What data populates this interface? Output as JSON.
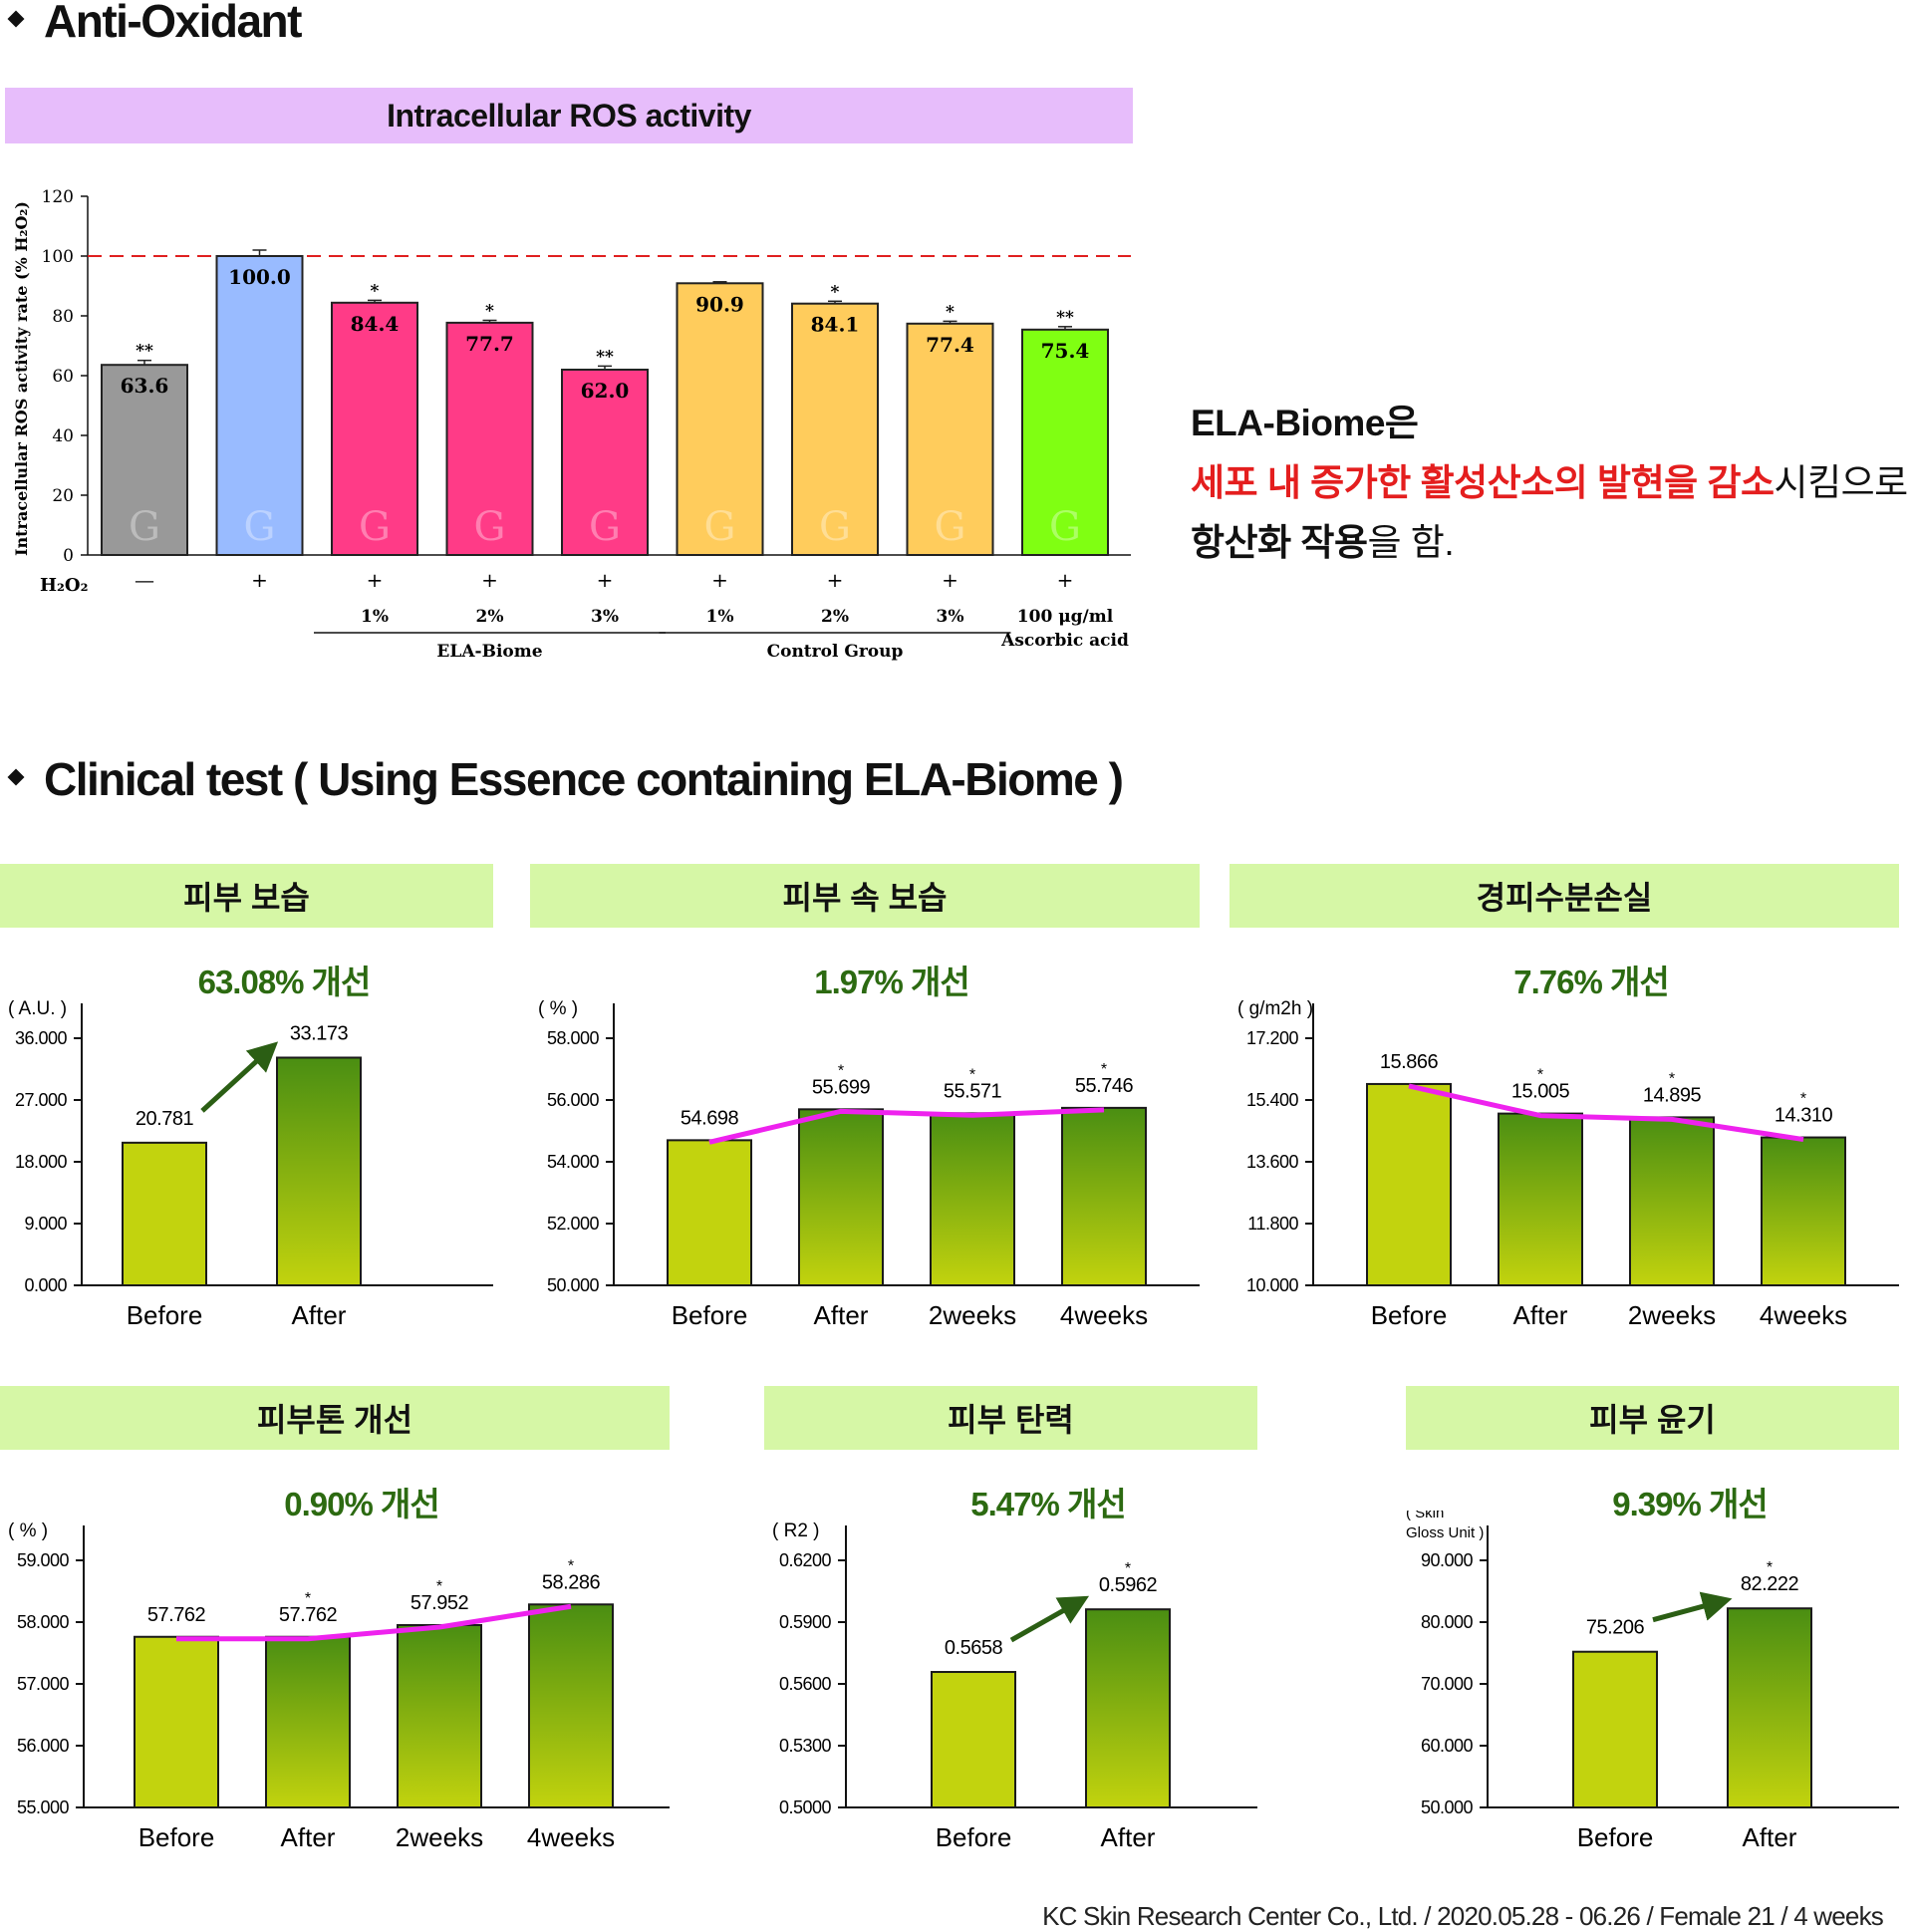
{
  "section1": {
    "title": "Anti-Oxidant"
  },
  "ros": {
    "banner": "Intracellular ROS activity",
    "note": {
      "line1": "ELA-Biome은",
      "line2_red": "세포 내 증가한  활성산소의 발현을 감소",
      "line2_rest": "시킴으로",
      "line3_bold": "항산화 작용",
      "line3_rest": "을 함."
    }
  },
  "section2": {
    "title": "Clinical test ( Using Essence containing ELA-Biome )"
  },
  "panels": {
    "p1": {
      "title": "피부 보습",
      "improve": "63.08% 개선"
    },
    "p2": {
      "title": "피부 속 보습",
      "improve": "1.97% 개선"
    },
    "p3": {
      "title": "경피수분손실",
      "improve": "7.76% 개선"
    },
    "p4": {
      "title": "피부톤 개선",
      "improve": "0.90% 개선"
    },
    "p5": {
      "title": "피부 탄력",
      "improve": "5.47% 개선"
    },
    "p6": {
      "title": "피부 윤기",
      "improve": "9.39% 개선"
    }
  },
  "footer": "KC Skin Research Center Co., Ltd. / 2020.05.28 - 06.26 / Female 21 / 4 weeks",
  "colors": {
    "gray": "#999999",
    "blue": "#99bbff",
    "pink": "#ff3b87",
    "yellow": "#ffcc5c",
    "green": "#80ff12",
    "reference": "#e02020",
    "trend": "#ee22ee",
    "arrow": "#2b5e14",
    "bar_dark": "#4a8e12",
    "bar_light": "#c2d30e"
  },
  "chart_data": [
    {
      "type": "bar",
      "title": "Intracellular ROS activity",
      "ylabel": "Intracellular ROS activity rate (% H₂O₂)",
      "xlabel": "",
      "ylim": [
        0,
        120
      ],
      "yticks": [
        "0",
        "20",
        "40",
        "60",
        "80",
        "100",
        "120"
      ],
      "reference_line": 100,
      "row_label": "H₂O₂",
      "categories": [
        "—",
        "+",
        "+",
        "+",
        "+",
        "+",
        "+",
        "+",
        "+"
      ],
      "sublabels": [
        "",
        "",
        "1%",
        "2%",
        "3%",
        "1%",
        "2%",
        "3%",
        "100 μg/ml"
      ],
      "values": [
        63.6,
        100.0,
        84.4,
        77.7,
        62.0,
        90.9,
        84.1,
        77.4,
        75.4
      ],
      "value_labels": [
        "63.6",
        "100.0",
        "84.4",
        "77.7",
        "62.0",
        "90.9",
        "84.1",
        "77.4",
        "75.4"
      ],
      "significance": [
        "**",
        "",
        "*",
        "*",
        "**",
        "",
        "*",
        "*",
        "**"
      ],
      "error": [
        1.5,
        2.0,
        0.8,
        0.8,
        1.2,
        0.5,
        0.8,
        0.8,
        1.0
      ],
      "bar_colors": [
        "gray",
        "blue",
        "pink",
        "pink",
        "pink",
        "yellow",
        "yellow",
        "yellow",
        "green"
      ],
      "groups": [
        {
          "label": "ELA-Biome",
          "from": 2,
          "to": 4
        },
        {
          "label": "Control Group",
          "from": 5,
          "to": 7
        },
        {
          "label": "Ascorbic acid",
          "from": 8,
          "to": 8
        }
      ],
      "grid": false
    },
    {
      "type": "bar",
      "title": "피부 보습",
      "unit_label": "( A.U. )",
      "categories": [
        "Before",
        "After"
      ],
      "values": [
        20.781,
        33.173
      ],
      "value_labels": [
        "20.781",
        "33.173"
      ],
      "significance": [
        "",
        ""
      ],
      "ylim": [
        0,
        36
      ],
      "yticks": [
        "0.000",
        "9.000",
        "18.000",
        "27.000",
        "36.000"
      ],
      "trend": "arrow"
    },
    {
      "type": "bar",
      "title": "피부 속 보습",
      "unit_label": "( % )",
      "categories": [
        "Before",
        "After",
        "2weeks",
        "4weeks"
      ],
      "values": [
        54.698,
        55.699,
        55.571,
        55.746
      ],
      "value_labels": [
        "54.698",
        "55.699",
        "55.571",
        "55.746"
      ],
      "significance": [
        "",
        "*",
        "*",
        "*"
      ],
      "ylim": [
        50,
        58
      ],
      "yticks": [
        "50.000",
        "52.000",
        "54.000",
        "56.000",
        "58.000"
      ],
      "trend": "line"
    },
    {
      "type": "bar",
      "title": "경피수분손실",
      "unit_label": "( g/m2h )",
      "categories": [
        "Before",
        "After",
        "2weeks",
        "4weeks"
      ],
      "values": [
        15.866,
        15.005,
        14.895,
        14.31
      ],
      "value_labels": [
        "15.866",
        "15.005",
        "14.895",
        "14.310"
      ],
      "significance": [
        "",
        "*",
        "*",
        "*"
      ],
      "ylim": [
        10,
        17.2
      ],
      "yticks": [
        "10.000",
        "11.800",
        "13.600",
        "15.400",
        "17.200"
      ],
      "trend": "line"
    },
    {
      "type": "bar",
      "title": "피부톤 개선",
      "unit_label": "( % )",
      "categories": [
        "Before",
        "After",
        "2weeks",
        "4weeks"
      ],
      "values": [
        57.762,
        57.762,
        57.952,
        58.286
      ],
      "value_labels": [
        "57.762",
        "57.762",
        "57.952",
        "58.286"
      ],
      "significance": [
        "",
        "*",
        "*",
        "*"
      ],
      "ylim": [
        55,
        59
      ],
      "yticks": [
        "55.000",
        "56.000",
        "57.000",
        "58.000",
        "59.000"
      ],
      "trend": "line"
    },
    {
      "type": "bar",
      "title": "피부 탄력",
      "unit_label": "( R2 )",
      "categories": [
        "Before",
        "After"
      ],
      "values": [
        0.5658,
        0.5962
      ],
      "value_labels": [
        "0.5658",
        "0.5962"
      ],
      "significance": [
        "",
        "*"
      ],
      "ylim": [
        0.5,
        0.62
      ],
      "yticks": [
        "0.5000",
        "0.5300",
        "0.5600",
        "0.5900",
        "0.6200"
      ],
      "trend": "arrow"
    },
    {
      "type": "bar",
      "title": "피부 윤기",
      "unit_label": [
        "( Skin",
        "Gloss Unit )"
      ],
      "categories": [
        "Before",
        "After"
      ],
      "values": [
        75.206,
        82.222
      ],
      "value_labels": [
        "75.206",
        "82.222"
      ],
      "significance": [
        "",
        "*"
      ],
      "ylim": [
        50,
        90
      ],
      "yticks": [
        "50.000",
        "60.000",
        "70.000",
        "80.000",
        "90.000"
      ],
      "trend": "arrow"
    }
  ]
}
